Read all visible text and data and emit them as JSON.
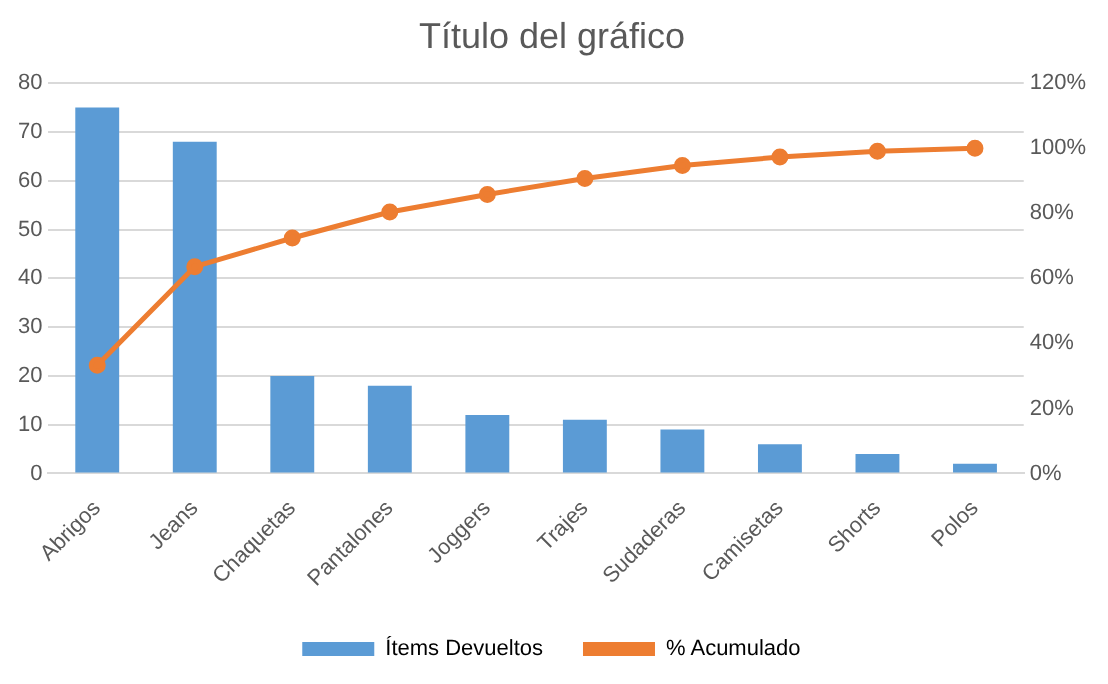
{
  "chart_data": {
    "type": "bar",
    "title": "Título del gráfico",
    "categories": [
      "Abrigos",
      "Jeans",
      "Chaquetas",
      "Pantalones",
      "Joggers",
      "Trajes",
      "Sudaderas",
      "Camisetas",
      "Shorts",
      "Polos"
    ],
    "series": [
      {
        "name": "Ítems Devueltos",
        "color": "#5b9bd5",
        "values": [
          75,
          68,
          20,
          18,
          12,
          11,
          9,
          6,
          4,
          2
        ]
      },
      {
        "name": "% Acumulado",
        "type": "line",
        "axis": "y2",
        "color": "#ed7d31",
        "values": [
          33.3,
          63.6,
          72.4,
          80.4,
          85.8,
          90.7,
          94.7,
          97.3,
          99.1,
          100
        ]
      }
    ],
    "ylim": [
      0,
      80
    ],
    "yticks": [
      0,
      10,
      20,
      30,
      40,
      50,
      60,
      70,
      80
    ],
    "y2lim": [
      0,
      120
    ],
    "y2ticks": [
      {
        "value": 0,
        "label": "0%"
      },
      {
        "value": 20,
        "label": "20%"
      },
      {
        "value": 40,
        "label": "40%"
      },
      {
        "value": 60,
        "label": "60%"
      },
      {
        "value": 80,
        "label": "80%"
      },
      {
        "value": 100,
        "label": "100%"
      },
      {
        "value": 120,
        "label": "120%"
      }
    ],
    "grid": "y",
    "legend": "bottom",
    "marker": "circle",
    "line_style": "solid"
  }
}
